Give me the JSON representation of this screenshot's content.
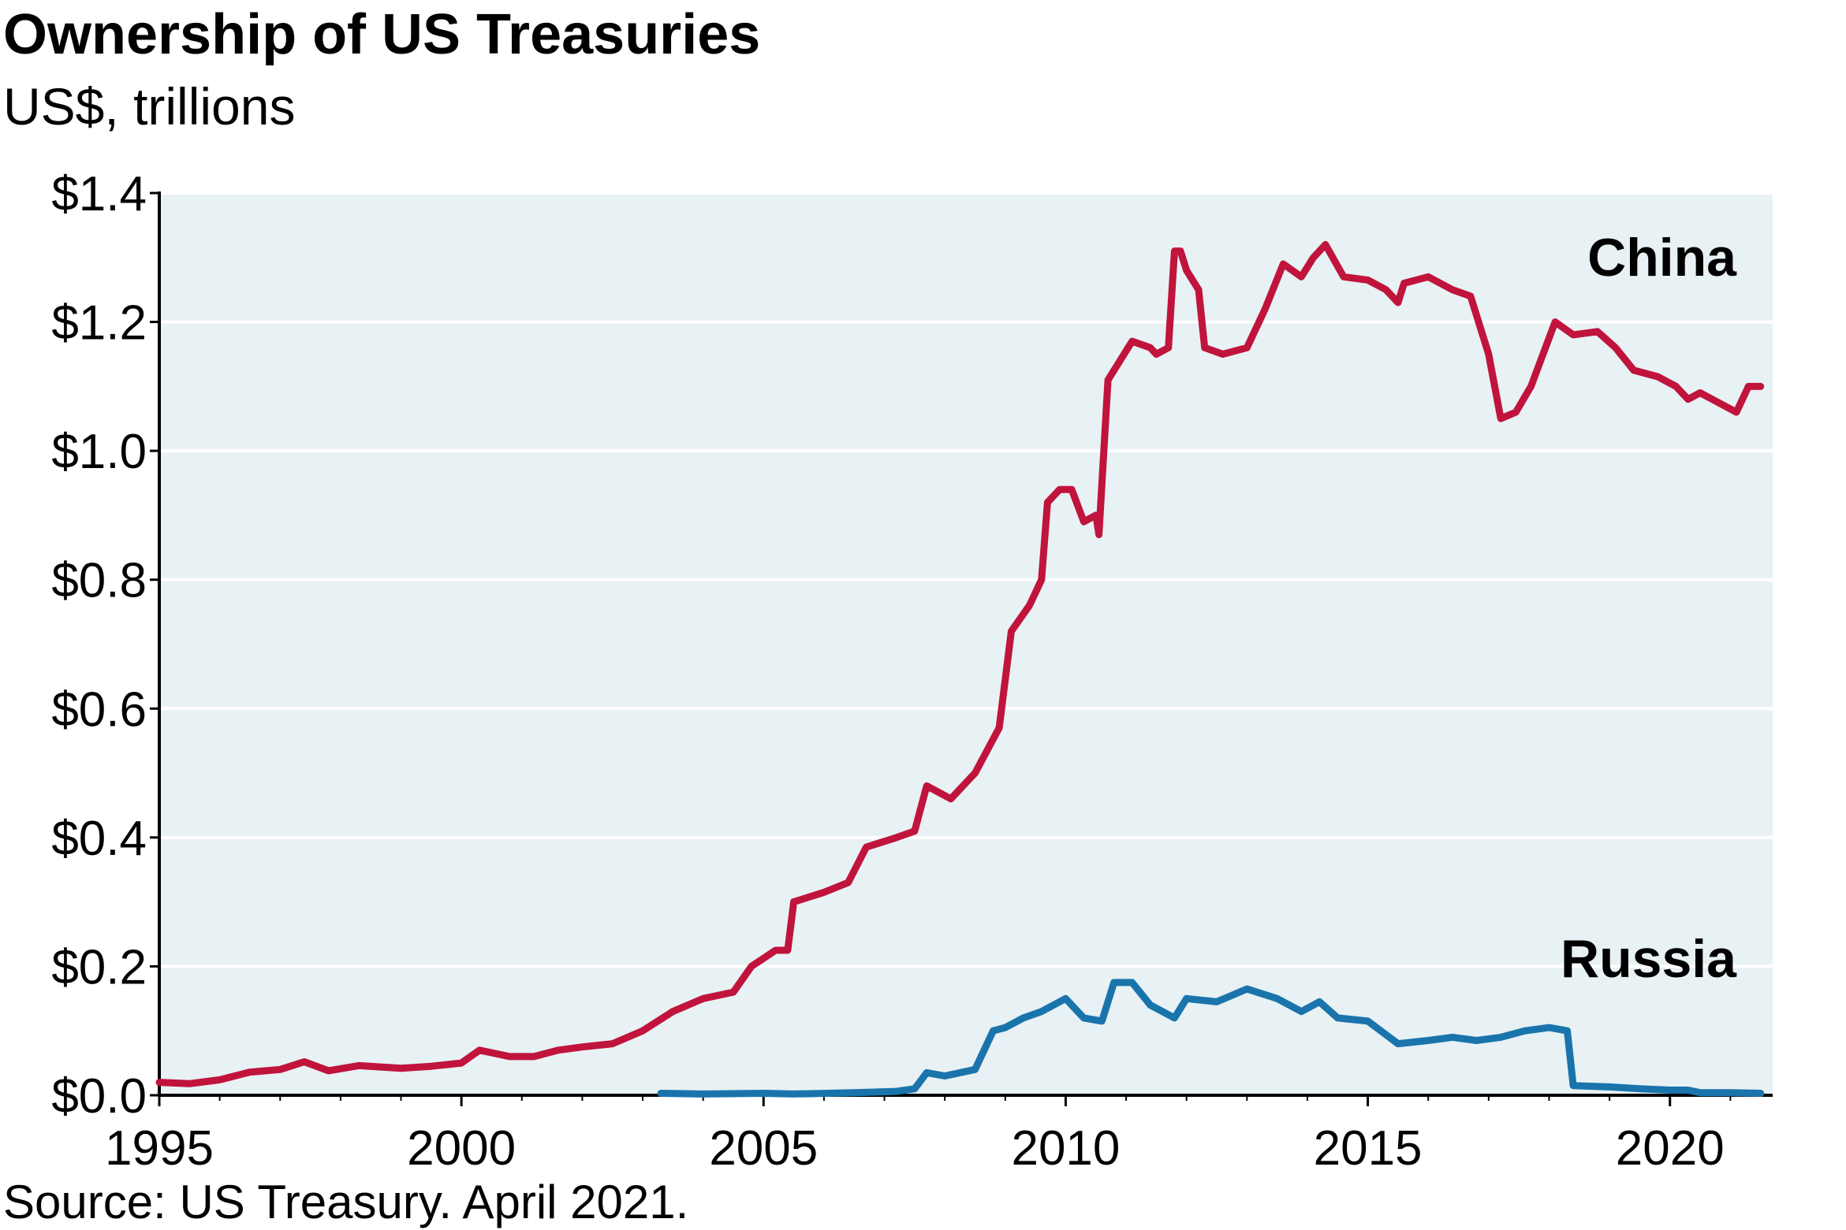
{
  "header": {
    "title": "Ownership of US Treasuries",
    "subtitle": "US$, trillions"
  },
  "footer": {
    "source": "Source: US Treasury. April 2021."
  },
  "chart_data": {
    "type": "line",
    "title": "Ownership of US Treasuries",
    "subtitle": "US$, trillions",
    "xlabel": "",
    "ylabel": "",
    "xlim": [
      1995,
      2021.7
    ],
    "ylim": [
      0,
      1.4
    ],
    "x_ticks": [
      1995,
      2000,
      2005,
      2010,
      2015,
      2020
    ],
    "x_tick_labels": [
      "1995",
      "2000",
      "2005",
      "2010",
      "2015",
      "2020"
    ],
    "y_ticks": [
      0,
      0.2,
      0.4,
      0.6,
      0.8,
      1.0,
      1.2,
      1.4
    ],
    "y_tick_labels": [
      "$0.0",
      "$0.2",
      "$0.4",
      "$0.6",
      "$0.8",
      "$1.0",
      "$1.2",
      "$1.4"
    ],
    "grid": "horizontal",
    "plot_background": "#e8f1f4",
    "series": [
      {
        "name": "China",
        "color": "#c0143c",
        "label_position": "top-right",
        "points": [
          [
            1995.0,
            0.02
          ],
          [
            1995.5,
            0.018
          ],
          [
            1996.0,
            0.024
          ],
          [
            1996.5,
            0.036
          ],
          [
            1997.0,
            0.04
          ],
          [
            1997.4,
            0.052
          ],
          [
            1997.8,
            0.038
          ],
          [
            1998.3,
            0.046
          ],
          [
            1999.0,
            0.042
          ],
          [
            1999.5,
            0.045
          ],
          [
            2000.0,
            0.05
          ],
          [
            2000.3,
            0.07
          ],
          [
            2000.8,
            0.06
          ],
          [
            2001.2,
            0.06
          ],
          [
            2001.6,
            0.07
          ],
          [
            2002.0,
            0.075
          ],
          [
            2002.5,
            0.08
          ],
          [
            2003.0,
            0.1
          ],
          [
            2003.5,
            0.13
          ],
          [
            2004.0,
            0.15
          ],
          [
            2004.5,
            0.16
          ],
          [
            2004.8,
            0.2
          ],
          [
            2005.2,
            0.225
          ],
          [
            2005.4,
            0.225
          ],
          [
            2005.5,
            0.3
          ],
          [
            2006.0,
            0.315
          ],
          [
            2006.4,
            0.33
          ],
          [
            2006.7,
            0.385
          ],
          [
            2007.2,
            0.4
          ],
          [
            2007.5,
            0.41
          ],
          [
            2007.7,
            0.48
          ],
          [
            2008.1,
            0.46
          ],
          [
            2008.5,
            0.5
          ],
          [
            2008.9,
            0.57
          ],
          [
            2009.1,
            0.72
          ],
          [
            2009.4,
            0.76
          ],
          [
            2009.6,
            0.8
          ],
          [
            2009.7,
            0.92
          ],
          [
            2009.9,
            0.94
          ],
          [
            2010.1,
            0.94
          ],
          [
            2010.3,
            0.89
          ],
          [
            2010.5,
            0.9
          ],
          [
            2010.55,
            0.87
          ],
          [
            2010.7,
            1.11
          ],
          [
            2010.9,
            1.14
          ],
          [
            2011.1,
            1.17
          ],
          [
            2011.4,
            1.16
          ],
          [
            2011.5,
            1.15
          ],
          [
            2011.7,
            1.16
          ],
          [
            2011.8,
            1.31
          ],
          [
            2011.9,
            1.31
          ],
          [
            2012.0,
            1.28
          ],
          [
            2012.2,
            1.25
          ],
          [
            2012.3,
            1.16
          ],
          [
            2012.6,
            1.15
          ],
          [
            2013.0,
            1.16
          ],
          [
            2013.3,
            1.22
          ],
          [
            2013.6,
            1.29
          ],
          [
            2013.9,
            1.27
          ],
          [
            2014.1,
            1.3
          ],
          [
            2014.3,
            1.32
          ],
          [
            2014.6,
            1.27
          ],
          [
            2015.0,
            1.265
          ],
          [
            2015.3,
            1.25
          ],
          [
            2015.5,
            1.23
          ],
          [
            2015.6,
            1.26
          ],
          [
            2016.0,
            1.27
          ],
          [
            2016.4,
            1.25
          ],
          [
            2016.7,
            1.24
          ],
          [
            2017.0,
            1.15
          ],
          [
            2017.2,
            1.05
          ],
          [
            2017.45,
            1.06
          ],
          [
            2017.7,
            1.1
          ],
          [
            2018.1,
            1.2
          ],
          [
            2018.4,
            1.18
          ],
          [
            2018.8,
            1.185
          ],
          [
            2019.1,
            1.16
          ],
          [
            2019.4,
            1.125
          ],
          [
            2019.8,
            1.115
          ],
          [
            2020.1,
            1.1
          ],
          [
            2020.3,
            1.08
          ],
          [
            2020.5,
            1.09
          ],
          [
            2020.8,
            1.075
          ],
          [
            2021.1,
            1.06
          ],
          [
            2021.3,
            1.1
          ],
          [
            2021.5,
            1.1
          ]
        ]
      },
      {
        "name": "Russia",
        "color": "#1a74ac",
        "label_position": "bottom-right",
        "points": [
          [
            2003.3,
            0.003
          ],
          [
            2004.0,
            0.002
          ],
          [
            2005.0,
            0.003
          ],
          [
            2005.5,
            0.002
          ],
          [
            2006.5,
            0.004
          ],
          [
            2007.2,
            0.006
          ],
          [
            2007.5,
            0.01
          ],
          [
            2007.7,
            0.035
          ],
          [
            2008.0,
            0.03
          ],
          [
            2008.5,
            0.04
          ],
          [
            2008.8,
            0.1
          ],
          [
            2009.0,
            0.105
          ],
          [
            2009.3,
            0.12
          ],
          [
            2009.6,
            0.13
          ],
          [
            2010.0,
            0.15
          ],
          [
            2010.3,
            0.12
          ],
          [
            2010.6,
            0.115
          ],
          [
            2010.8,
            0.175
          ],
          [
            2011.1,
            0.175
          ],
          [
            2011.4,
            0.14
          ],
          [
            2011.8,
            0.12
          ],
          [
            2012.0,
            0.15
          ],
          [
            2012.5,
            0.145
          ],
          [
            2013.0,
            0.165
          ],
          [
            2013.5,
            0.15
          ],
          [
            2013.9,
            0.13
          ],
          [
            2014.2,
            0.145
          ],
          [
            2014.5,
            0.12
          ],
          [
            2015.0,
            0.115
          ],
          [
            2015.5,
            0.08
          ],
          [
            2016.0,
            0.085
          ],
          [
            2016.4,
            0.09
          ],
          [
            2016.8,
            0.085
          ],
          [
            2017.2,
            0.09
          ],
          [
            2017.6,
            0.1
          ],
          [
            2018.0,
            0.105
          ],
          [
            2018.3,
            0.1
          ],
          [
            2018.4,
            0.015
          ],
          [
            2019.0,
            0.013
          ],
          [
            2019.5,
            0.01
          ],
          [
            2020.0,
            0.008
          ],
          [
            2020.3,
            0.008
          ],
          [
            2020.5,
            0.004
          ],
          [
            2021.0,
            0.004
          ],
          [
            2021.5,
            0.003
          ]
        ]
      }
    ]
  }
}
